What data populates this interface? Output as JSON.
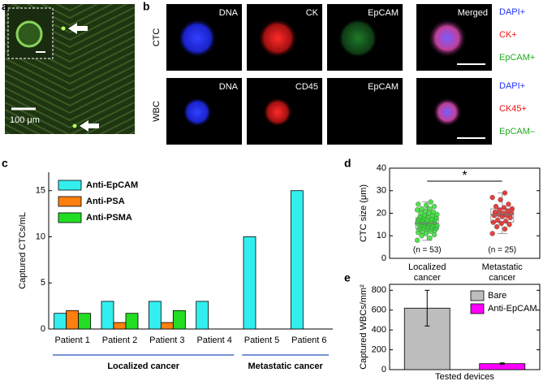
{
  "panel_labels": [
    "a",
    "b",
    "c",
    "d",
    "e"
  ],
  "panel_a": {
    "scale_bar_label": "100 μm"
  },
  "panel_b": {
    "rows": [
      {
        "label": "CTC",
        "channels": [
          "DNA",
          "CK",
          "EpCAM",
          "Merged"
        ],
        "markers": [
          "DAPI+",
          "CK+",
          "EpCAM+"
        ]
      },
      {
        "label": "WBC",
        "channels": [
          "DNA",
          "CD45",
          "EpCAM"
        ],
        "markers": [
          "DAPI+",
          "CK45+",
          "EpCAM–"
        ]
      }
    ]
  },
  "chart_data": [
    {
      "type": "bar",
      "ylabel": "Captured CTCs/mL",
      "categories": [
        "Patient 1",
        "Patient 2",
        "Patient 3",
        "Patient 4",
        "Patient 5",
        "Patient 6"
      ],
      "series": [
        {
          "name": "Anti-EpCAM",
          "color": "#33eeee",
          "values": [
            1.7,
            3,
            3,
            3,
            10,
            15
          ]
        },
        {
          "name": "Anti-PSA",
          "color": "#ff7f0e",
          "values": [
            2,
            0.7,
            0.7,
            null,
            null,
            null
          ]
        },
        {
          "name": "Anti-PSMA",
          "color": "#22dd22",
          "values": [
            1.7,
            1.7,
            2,
            null,
            null,
            null
          ]
        }
      ],
      "ylim": [
        0,
        17
      ],
      "yticks": [
        0,
        5,
        10,
        15
      ],
      "legend": "upper left",
      "group_labels": [
        "Localized cancer",
        "Metastatic cancer"
      ]
    },
    {
      "type": "box_scatter",
      "ylabel": "CTC size (μm)",
      "categories": [
        "Localized cancer",
        "Metastatic cancer"
      ],
      "groups": [
        {
          "color": "#33dd33",
          "annotation": "(n = 53)",
          "values": [
            8,
            9,
            10,
            10.5,
            11,
            11.5,
            12,
            12,
            12.5,
            13,
            13,
            13,
            13.5,
            13.5,
            14,
            14,
            14,
            14.5,
            14.5,
            15,
            15,
            15,
            15.5,
            15.5,
            15.5,
            16,
            16,
            16,
            16.5,
            16.5,
            17,
            17,
            17,
            17.5,
            17.5,
            18,
            18,
            18.5,
            18.5,
            19,
            19,
            19.5,
            20,
            20,
            20.5,
            21,
            21.5,
            22,
            22,
            23,
            23.5,
            24,
            25
          ],
          "box": {
            "whislo": 8,
            "q1": 13,
            "median": 15.5,
            "q3": 18,
            "whishi": 25
          }
        },
        {
          "color": "#dd2222",
          "annotation": "(n = 25)",
          "values": [
            11,
            13,
            14,
            15,
            15.5,
            16,
            16.5,
            17,
            18,
            18.5,
            19,
            19,
            19.5,
            20,
            20,
            20.5,
            21,
            21.5,
            22,
            22.5,
            23,
            24,
            26,
            27,
            29
          ],
          "box": {
            "whislo": 11,
            "q1": 16,
            "median": 19.5,
            "q3": 22,
            "whishi": 29
          }
        }
      ],
      "significance": "*",
      "ylim": [
        0,
        40
      ],
      "yticks": [
        0,
        10,
        20,
        30,
        40
      ]
    },
    {
      "type": "bar_error",
      "xlabel": "Tested devices",
      "ylabel": "Captured WBCs/mm²",
      "series": [
        {
          "name": "Bare",
          "color": "#bdbdbd",
          "values": [
            620
          ],
          "errors": [
            180
          ]
        },
        {
          "name": "Anti-EpCAM",
          "color": "#ff00ff",
          "values": [
            60
          ],
          "errors": [
            8
          ]
        }
      ],
      "ylim": [
        0,
        860
      ],
      "yticks": [
        0,
        200,
        400,
        600,
        800
      ],
      "legend": "upper right"
    }
  ]
}
